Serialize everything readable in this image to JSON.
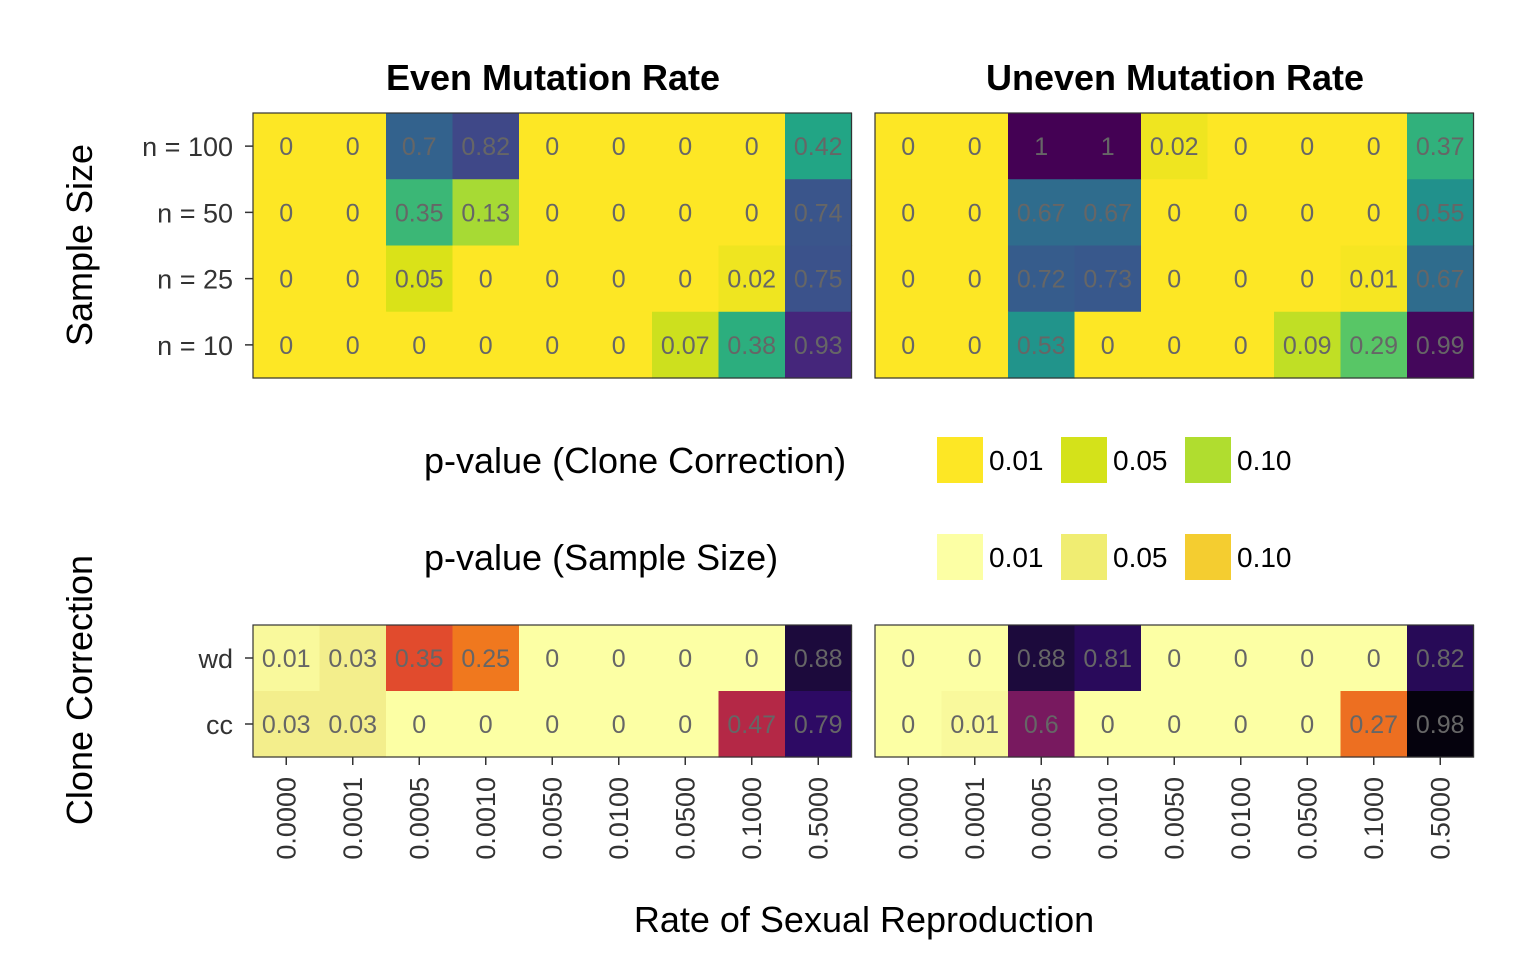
{
  "chart_data": [
    {
      "type": "heatmap",
      "name": "sample-size",
      "panel_titles": [
        "Even Mutation Rate",
        "Uneven Mutation Rate"
      ],
      "ylabel": "Sample Size",
      "y_categories": [
        "n = 100",
        "n = 50",
        "n = 25",
        "n = 10"
      ],
      "x_categories": [
        "0.0000",
        "0.0001",
        "0.0005",
        "0.0010",
        "0.0050",
        "0.0100",
        "0.0500",
        "0.1000",
        "0.5000"
      ],
      "colormap": "viridis",
      "values": [
        [
          [
            "0",
            "0",
            "0.7",
            "0.82",
            "0",
            "0",
            "0",
            "0",
            "0.42"
          ],
          [
            "0",
            "0",
            "0.35",
            "0.13",
            "0",
            "0",
            "0",
            "0",
            "0.74"
          ],
          [
            "0",
            "0",
            "0.05",
            "0",
            "0",
            "0",
            "0",
            "0.02",
            "0.75"
          ],
          [
            "0",
            "0",
            "0",
            "0",
            "0",
            "0",
            "0.07",
            "0.38",
            "0.93"
          ]
        ],
        [
          [
            "0",
            "0",
            "1",
            "1",
            "0.02",
            "0",
            "0",
            "0",
            "0.37"
          ],
          [
            "0",
            "0",
            "0.67",
            "0.67",
            "0",
            "0",
            "0",
            "0",
            "0.55"
          ],
          [
            "0",
            "0",
            "0.72",
            "0.73",
            "0",
            "0",
            "0",
            "0.01",
            "0.67"
          ],
          [
            "0",
            "0",
            "0.53",
            "0",
            "0",
            "0",
            "0.09",
            "0.29",
            "0.99"
          ]
        ]
      ]
    },
    {
      "type": "heatmap",
      "name": "clone-correction",
      "ylabel": "Clone Correction",
      "xlabel": "Rate of Sexual Reproduction",
      "y_categories": [
        "wd",
        "cc"
      ],
      "x_categories": [
        "0.0000",
        "0.0001",
        "0.0005",
        "0.0010",
        "0.0050",
        "0.0100",
        "0.0500",
        "0.1000",
        "0.5000"
      ],
      "colormap": "inferno",
      "values": [
        [
          [
            "0.01",
            "0.03",
            "0.35",
            "0.25",
            "0",
            "0",
            "0",
            "0",
            "0.88"
          ],
          [
            "0.03",
            "0.03",
            "0",
            "0",
            "0",
            "0",
            "0",
            "0.47",
            "0.79"
          ]
        ],
        [
          [
            "0",
            "0",
            "0.88",
            "0.81",
            "0",
            "0",
            "0",
            "0",
            "0.82"
          ],
          [
            "0",
            "0.01",
            "0.6",
            "0",
            "0",
            "0",
            "0",
            "0.27",
            "0.98"
          ]
        ]
      ]
    }
  ],
  "legends": [
    {
      "title": "p-value (Clone Correction)",
      "items": [
        {
          "label": "0.01",
          "color": "#fde725"
        },
        {
          "label": "0.05",
          "color": "#d4e21a"
        },
        {
          "label": "0.10",
          "color": "#b0dd2f"
        }
      ]
    },
    {
      "title": "p-value (Sample Size)",
      "items": [
        {
          "label": "0.01",
          "color": "#fcffa4"
        },
        {
          "label": "0.05",
          "color": "#f0ed72"
        },
        {
          "label": "0.10",
          "color": "#f4cd30"
        }
      ]
    }
  ]
}
